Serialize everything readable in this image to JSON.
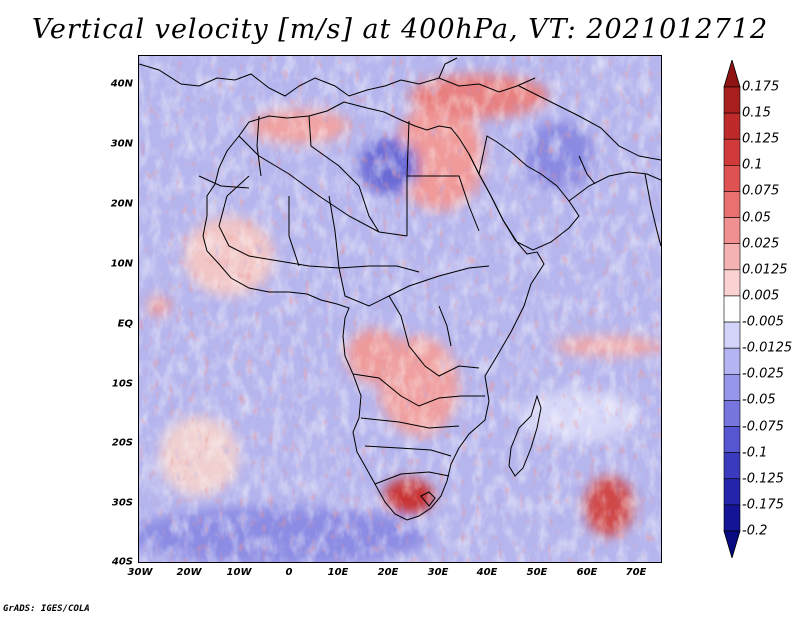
{
  "title": "Vertical velocity [m/s] at 400hPa, VT: 2021012712",
  "footer": "GrADS: IGES/COLA",
  "lat_labels": [
    "40N",
    "30N",
    "20N",
    "10N",
    "EQ",
    "10S",
    "20S",
    "30S",
    "40S"
  ],
  "lon_labels": [
    "30W",
    "20W",
    "10W",
    "0",
    "10E",
    "20E",
    "30E",
    "40E",
    "50E",
    "60E",
    "70E"
  ],
  "colorbar": {
    "labels": [
      "0.175",
      "0.15",
      "0.125",
      "0.1",
      "0.075",
      "0.05",
      "0.025",
      "0.0125",
      "0.005",
      "-0.005",
      "-0.0125",
      "-0.025",
      "-0.05",
      "-0.075",
      "-0.1",
      "-0.125",
      "-0.175",
      "-0.2"
    ],
    "colors": [
      "#a81e1e",
      "#be2a2a",
      "#d03a3a",
      "#de5252",
      "#e87070",
      "#f09090",
      "#f5b2b2",
      "#fad2d2",
      "#ffffff",
      "#d4d4fa",
      "#b4b4f2",
      "#9696ea",
      "#7676de",
      "#5656d0",
      "#3a3abe",
      "#2424aa",
      "#141496"
    ],
    "top_arrow_color": "#901414",
    "bottom_arrow_color": "#0a0a80"
  },
  "chart_data": {
    "type": "heatmap",
    "title": "Vertical velocity [m/s] at 400hPa, VT: 2021012712",
    "variable": "Vertical velocity",
    "units": "m/s",
    "level": "400hPa",
    "valid_time": "2021012712",
    "lon_range": [
      -30,
      75
    ],
    "lat_range": [
      -40,
      45
    ],
    "contour_levels": [
      -0.2,
      -0.175,
      -0.125,
      -0.1,
      -0.075,
      -0.05,
      -0.025,
      -0.0125,
      -0.005,
      0.005,
      0.0125,
      0.025,
      0.05,
      0.075,
      0.1,
      0.125,
      0.15,
      0.175
    ]
  }
}
